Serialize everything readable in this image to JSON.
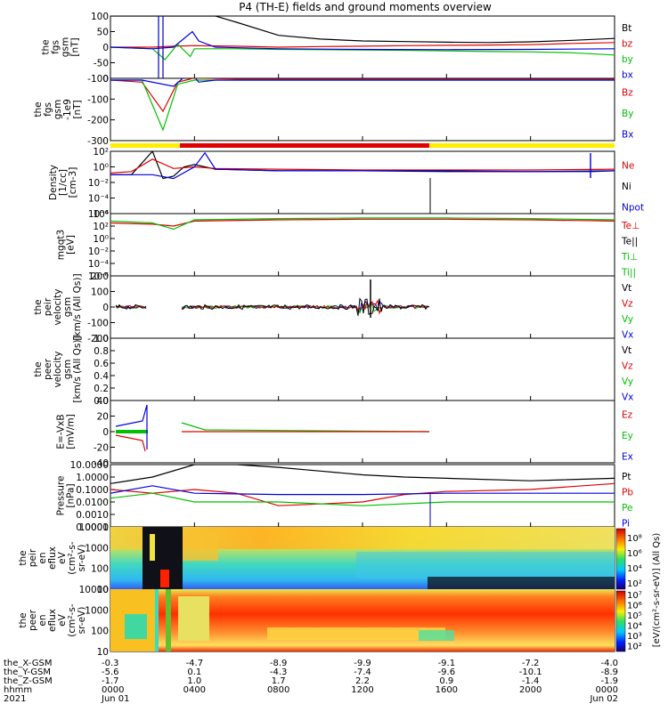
{
  "title": "P4 (TH-E) fields and ground moments overview",
  "panels": [
    {
      "id": "fgs_bt",
      "ylabel": [
        "the",
        "fgs",
        "gsm",
        "[nT]"
      ],
      "ticks": [
        "100",
        "50",
        "0",
        "-50",
        "-100"
      ],
      "legend": [
        {
          "t": "Bt",
          "c": "#000000"
        },
        {
          "t": "bz",
          "c": "#e00000"
        },
        {
          "t": "by",
          "c": "#00c000"
        },
        {
          "t": "bx",
          "c": "#0000e0"
        }
      ]
    },
    {
      "id": "fgs_b",
      "ylabel": [
        "the",
        "fgs",
        "gsm",
        "-1e9",
        "[nT]"
      ],
      "ticks": [
        "0",
        "-100",
        "-200",
        "-300"
      ],
      "legend": [
        {
          "t": "Bz",
          "c": "#e00000"
        },
        {
          "t": "By",
          "c": "#00c000"
        },
        {
          "t": "Bx",
          "c": "#0000e0"
        }
      ]
    },
    {
      "id": "density",
      "ylabel": [
        "Density",
        "[1/cc]",
        "[cm-3]"
      ],
      "ticks": [
        "10²",
        "10⁰",
        "10⁻²",
        "10⁻⁴",
        "10⁻⁶"
      ],
      "legend": [
        {
          "t": "Ne",
          "c": "#e00000"
        },
        {
          "t": "Ni",
          "c": "#000000"
        },
        {
          "t": "Npot",
          "c": "#0000e0"
        }
      ]
    },
    {
      "id": "temp",
      "ylabel": [
        "mgqt3",
        "[eV]"
      ],
      "ticks": [
        "10⁴",
        "10²",
        "10⁰",
        "10⁻²",
        "10⁻⁴",
        "10⁻⁶"
      ],
      "legend": [
        {
          "t": "Te⊥",
          "c": "#e00000"
        },
        {
          "t": "Te||",
          "c": "#000000"
        },
        {
          "t": "Ti⊥",
          "c": "#00c000"
        },
        {
          "t": "Ti||",
          "c": "#00c000"
        }
      ]
    },
    {
      "id": "peir_v",
      "ylabel": [
        "the",
        "peir",
        "velocity",
        "gsm",
        "[km/s (All Qs)]"
      ],
      "ticks": [
        "200",
        "100",
        "0",
        "-100",
        "-200"
      ],
      "legend": [
        {
          "t": "Vt",
          "c": "#000000"
        },
        {
          "t": "Vz",
          "c": "#e00000"
        },
        {
          "t": "Vy",
          "c": "#00c000"
        },
        {
          "t": "Vx",
          "c": "#0000e0"
        }
      ]
    },
    {
      "id": "peer_v",
      "ylabel": [
        "the",
        "peer",
        "velocity",
        "gsm",
        "[km/s (All Qs)]"
      ],
      "ticks": [
        "1.0",
        "0.8",
        "0.6",
        "0.4",
        "0.2",
        "0.0"
      ],
      "legend": [
        {
          "t": "Vt",
          "c": "#000000"
        },
        {
          "t": "Vz",
          "c": "#e00000"
        },
        {
          "t": "Vy",
          "c": "#00c000"
        },
        {
          "t": "Vx",
          "c": "#0000e0"
        }
      ]
    },
    {
      "id": "efield",
      "ylabel": [
        "E=-VxB",
        "[mV/m]"
      ],
      "ticks": [
        "40",
        "20",
        "0",
        "-20",
        "-40"
      ],
      "legend": [
        {
          "t": "Ez",
          "c": "#e00000"
        },
        {
          "t": "Ey",
          "c": "#00c000"
        },
        {
          "t": "Ex",
          "c": "#0000e0"
        }
      ]
    },
    {
      "id": "pressure",
      "ylabel": [
        "Pressure",
        "[nPa]"
      ],
      "ticks": [
        "10.0000",
        "1.0000",
        "0.1000",
        "0.0100",
        "0.0010",
        "0.0001"
      ],
      "legend": [
        {
          "t": "Pt",
          "c": "#000000"
        },
        {
          "t": "Pb",
          "c": "#e00000"
        },
        {
          "t": "Pe",
          "c": "#00c000"
        },
        {
          "t": "Pi",
          "c": "#0000e0"
        }
      ]
    },
    {
      "id": "peir_spec",
      "ylabel": [
        "the",
        "peir",
        "en",
        "eflux",
        "eV",
        "(cm²-s-",
        "sr-eV)"
      ],
      "ticks": [
        "10000",
        "1000",
        "100",
        "10"
      ],
      "legend": []
    },
    {
      "id": "peer_spec",
      "ylabel": [
        "the",
        "peer",
        "en",
        "eflux",
        "eV",
        "(cm²-s-",
        "sr-eV)"
      ],
      "ticks": [
        "10000",
        "1000",
        "100",
        "10"
      ],
      "legend": []
    }
  ],
  "colorbar": {
    "label": "[eV/(cm²-s-sr-eV)] (All Qs)",
    "ticks": [
      "10⁸",
      "10⁶",
      "10⁴",
      "10²"
    ],
    "ticks2": [
      "10⁷",
      "10⁶",
      "10⁵",
      "10⁴",
      "10³",
      "10²"
    ]
  },
  "orbit_labels": [
    "the_X-GSM",
    "the_Y-GSM",
    "the_Z-GSM",
    "hhmm",
    "2021"
  ],
  "orbit_values": [
    [
      "-0.3",
      "-5.6",
      "-1.7",
      "0000",
      "Jun 01"
    ],
    [
      "-4.7",
      "0.1",
      "1.0",
      "0400",
      ""
    ],
    [
      "-8.9",
      "-4.3",
      "1.7",
      "0800",
      ""
    ],
    [
      "-9.9",
      "-7.4",
      "2.2",
      "1200",
      ""
    ],
    [
      "-9.1",
      "-9.6",
      "0.9",
      "1600",
      ""
    ],
    [
      "-7.2",
      "-10.1",
      "-1.4",
      "2000",
      ""
    ],
    [
      "-4.0",
      "-8.9",
      "-1.9",
      "0000",
      "Jun 02"
    ]
  ],
  "chart_data": {
    "type": "line",
    "title": "P4 (TH-E) fields and ground moments overview",
    "x_range_hours": [
      0,
      24
    ],
    "x_ticks": [
      "0000",
      "0400",
      "0800",
      "1200",
      "1600",
      "2000",
      "0000"
    ],
    "series": [
      {
        "panel": "fgs_bt",
        "name": "Bt",
        "x": [
          0,
          1.5,
          2.5,
          4,
          5,
          6,
          8,
          10,
          12,
          14,
          16,
          18,
          20,
          22,
          24
        ],
        "y": [
          100,
          100,
          100,
          100,
          100,
          80,
          38,
          26,
          20,
          18,
          16,
          15,
          17,
          22,
          28
        ]
      },
      {
        "panel": "fgs_bt",
        "name": "bz",
        "x": [
          0,
          2,
          3,
          4,
          6,
          8,
          10,
          12,
          14,
          16,
          18,
          20,
          22,
          24
        ],
        "y": [
          0,
          0,
          3,
          5,
          3,
          0,
          2,
          3,
          5,
          6,
          7,
          8,
          12,
          15
        ]
      },
      {
        "panel": "fgs_bt",
        "name": "by",
        "x": [
          0,
          2,
          2.6,
          3.2,
          3.8,
          4,
          6,
          8,
          10,
          12,
          14,
          16,
          18,
          20,
          22,
          24
        ],
        "y": [
          0,
          -5,
          -40,
          10,
          -30,
          -5,
          -5,
          -7,
          -8,
          -9,
          -10,
          -12,
          -14,
          -15,
          -18,
          -25
        ]
      },
      {
        "panel": "fgs_bt",
        "name": "bx",
        "x": [
          0,
          2,
          3,
          3.9,
          4.2,
          5,
          8,
          12,
          16,
          20,
          24
        ],
        "y": [
          0,
          -5,
          0,
          50,
          20,
          0,
          -5,
          -7,
          -8,
          -7,
          -5
        ]
      },
      {
        "panel": "fgs_b",
        "name": "Bz",
        "x": [
          0,
          1.5,
          2.5,
          3.2,
          4,
          6,
          10,
          16,
          20,
          24
        ],
        "y": [
          0,
          -10,
          -150,
          -10,
          10,
          5,
          5,
          5,
          5,
          5
        ]
      },
      {
        "panel": "fgs_b",
        "name": "By",
        "x": [
          0,
          1.5,
          2.5,
          3.2,
          4,
          6,
          10,
          16,
          20,
          24
        ],
        "y": [
          0,
          0,
          -240,
          -20,
          0,
          0,
          0,
          0,
          0,
          0
        ]
      },
      {
        "panel": "fgs_b",
        "name": "Bx",
        "x": [
          0,
          1.5,
          3,
          3.8,
          4.2,
          5,
          10,
          16,
          20,
          24
        ],
        "y": [
          0,
          0,
          -30,
          40,
          -10,
          0,
          0,
          0,
          0,
          0
        ]
      },
      {
        "panel": "density",
        "name": "Ni",
        "x": [
          0,
          1,
          2,
          2.5,
          3,
          3.5,
          4,
          5,
          8,
          12,
          16,
          20,
          24
        ],
        "y": [
          -1,
          -1,
          2,
          -1.5,
          -1.2,
          0,
          0.3,
          -0.3,
          -0.5,
          -0.5,
          -0.6,
          -0.6,
          -0.5
        ]
      },
      {
        "panel": "density",
        "name": "Ne",
        "x": [
          0,
          1,
          2,
          3,
          4,
          5,
          8,
          12,
          16,
          20,
          24
        ],
        "y": [
          -0.8,
          -0.6,
          1,
          -0.2,
          0,
          -0.2,
          -0.3,
          -0.4,
          -0.4,
          -0.4,
          -0.3
        ]
      },
      {
        "panel": "density",
        "name": "Npot",
        "x": [
          0,
          1,
          2,
          3,
          4,
          4.5,
          5,
          8,
          12,
          16,
          20,
          23,
          24
        ],
        "y": [
          -1,
          -1,
          -1,
          -1.5,
          0,
          1.8,
          -0.3,
          -0.5,
          -0.5,
          -0.5,
          -0.6,
          -0.6,
          -0.5
        ]
      },
      {
        "panel": "temp",
        "name": "Te⊥",
        "x": [
          0,
          2,
          3,
          4,
          8,
          12,
          16,
          20,
          24
        ],
        "y": [
          2.5,
          2.3,
          2,
          2.8,
          3,
          3.1,
          3.1,
          3.0,
          2.8
        ]
      },
      {
        "panel": "temp",
        "name": "Ti⊥",
        "x": [
          0,
          2,
          3,
          4,
          8,
          12,
          16,
          20,
          24
        ],
        "y": [
          2.8,
          2.5,
          1.5,
          3,
          3.2,
          3.3,
          3.3,
          3.2,
          3.0
        ]
      },
      {
        "panel": "pressure",
        "name": "Pt",
        "x": [
          0,
          2,
          4,
          6,
          8,
          10,
          12,
          14,
          16,
          20,
          24
        ],
        "y": [
          0.3,
          1,
          10,
          10,
          6,
          3,
          1.5,
          1,
          0.8,
          0.5,
          0.8
        ]
      },
      {
        "panel": "pressure",
        "name": "Pb",
        "x": [
          0,
          2,
          4,
          6,
          8,
          10,
          12,
          14,
          16,
          20,
          24
        ],
        "y": [
          0.1,
          0.05,
          0.1,
          0.05,
          0.005,
          0.007,
          0.01,
          0.04,
          0.07,
          0.1,
          0.3
        ]
      },
      {
        "panel": "pressure",
        "name": "Pe",
        "x": [
          0,
          2,
          4,
          8,
          12,
          16,
          20,
          24
        ],
        "y": [
          0.02,
          0.05,
          0.01,
          0.01,
          0.005,
          0.01,
          0.01,
          0.01
        ]
      },
      {
        "panel": "pressure",
        "name": "Pi",
        "x": [
          0,
          2,
          4,
          8,
          12,
          16,
          20,
          24
        ],
        "y": [
          0.05,
          0.2,
          0.05,
          0.04,
          0.04,
          0.05,
          0.05,
          0.05
        ]
      }
    ]
  }
}
